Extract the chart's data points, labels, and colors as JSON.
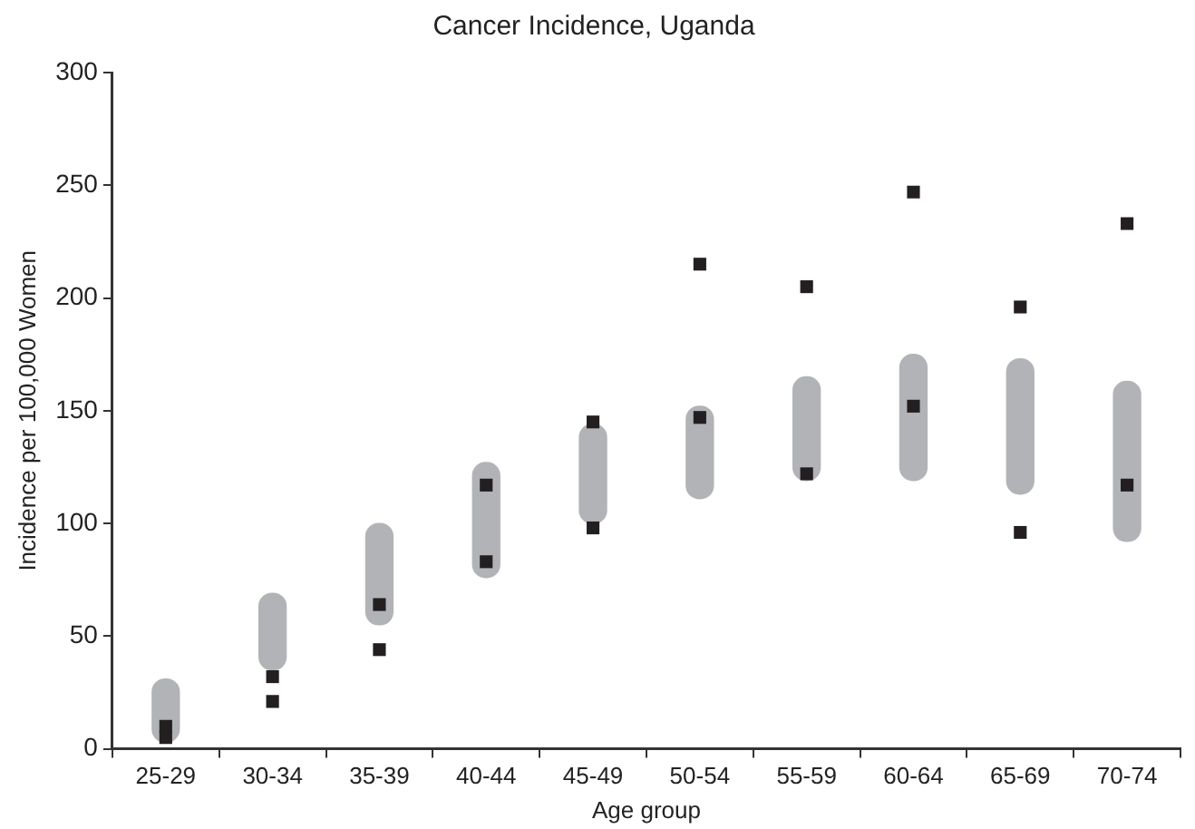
{
  "chart_data": {
    "type": "bar",
    "title": "Cancer Incidence, Uganda",
    "xlabel": "Age group",
    "ylabel": "Incidence per 100,000 Women",
    "categories": [
      "25-29",
      "30-34",
      "35-39",
      "40-44",
      "45-49",
      "50-54",
      "55-59",
      "60-64",
      "65-69",
      "70-74"
    ],
    "series": [
      {
        "color": "#b1b3b6",
        "base": [
          3,
          35,
          55,
          76,
          100,
          111,
          119,
          119,
          113,
          92
        ],
        "values": [
          28,
          34,
          45,
          51,
          44,
          41,
          46,
          56,
          60,
          71
        ]
      },
      {
        "type": "scatter",
        "marker": "square",
        "color": "#231f20",
        "values": [
          10,
          32,
          64,
          117,
          145,
          215,
          205,
          247,
          196,
          233
        ]
      },
      {
        "type": "scatter",
        "marker": "square",
        "color": "#231f20",
        "values": [
          5,
          21,
          44,
          83,
          98,
          147,
          122,
          152,
          96,
          117
        ]
      }
    ],
    "ylim": [
      0,
      300
    ],
    "yticks": [
      0,
      50,
      100,
      150,
      200,
      250,
      300
    ],
    "grid": false,
    "legend": false
  }
}
